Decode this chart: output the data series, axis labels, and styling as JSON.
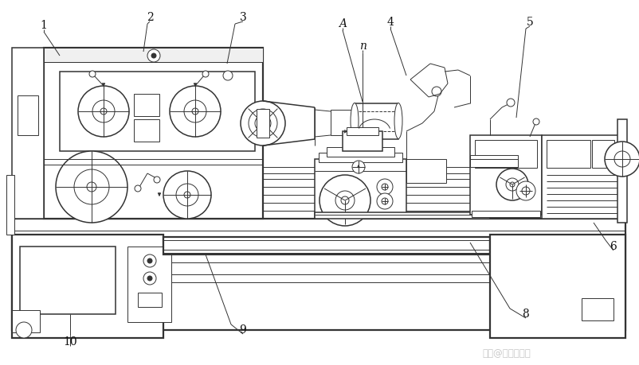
{
  "background_color": "#ffffff",
  "line_color": "#333333",
  "label_color": "#111111",
  "watermark_text": "知乎@砖渣莫图联",
  "watermark_color": "#bbbbbb",
  "fig_width": 8.03,
  "fig_height": 4.59,
  "dpi": 100
}
